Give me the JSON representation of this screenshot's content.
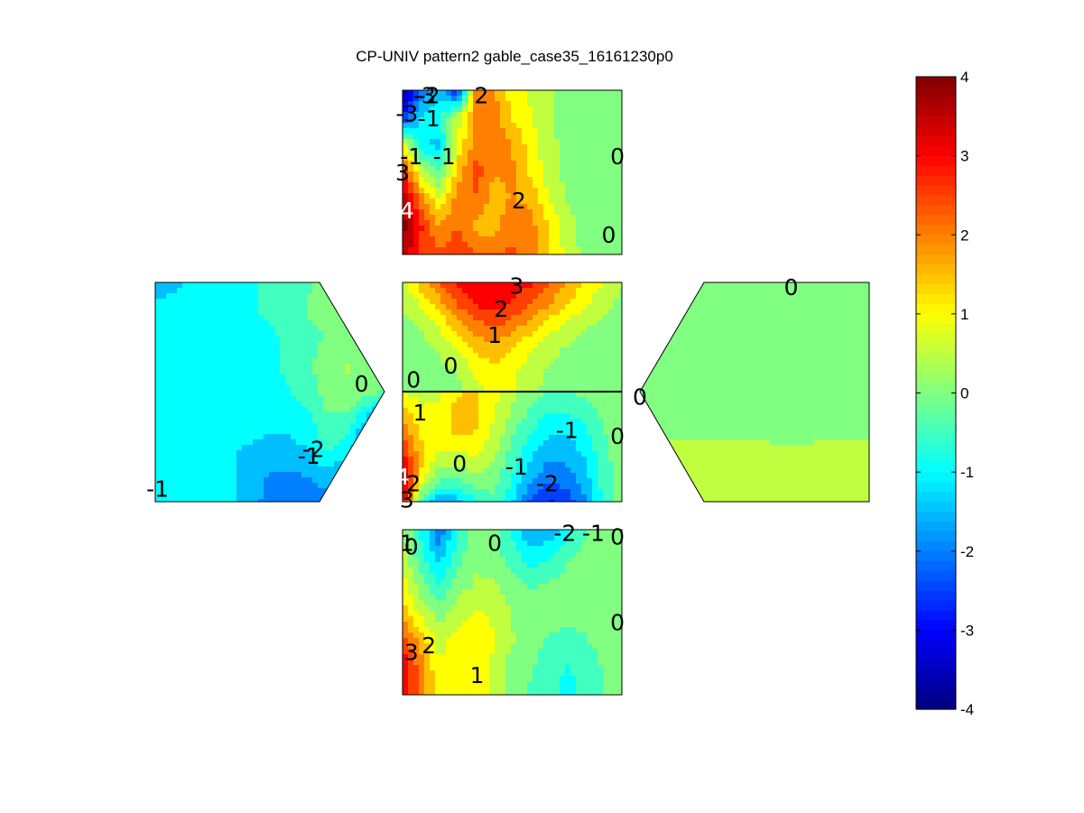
{
  "chart_data": {
    "type": "contour",
    "title": "CP-UNIV pattern2 gable_case35_16161230p0",
    "colormap": "jet",
    "colorbar": {
      "placement": "right",
      "range": [
        -4,
        4
      ],
      "levels": 64,
      "ticks": [
        "4",
        "3",
        "2",
        "1",
        "0",
        "-1",
        "-2",
        "-3",
        "-4"
      ]
    },
    "panels": [
      {
        "name": "top",
        "shape": "rectangle",
        "grid": [
          [
            -3.8,
            -2.3,
            -1.5,
            -3.0,
            2.0,
            1.8,
            1.0,
            0.6,
            0.3,
            0.1,
            0.0,
            0.0,
            0.0
          ],
          [
            -2.8,
            -1.2,
            -0.8,
            0.5,
            2.0,
            2.0,
            1.2,
            0.8,
            0.3,
            0.0,
            0.0,
            0.0,
            0.0
          ],
          [
            1.0,
            -1.2,
            -1.4,
            0.8,
            2.0,
            2.0,
            1.8,
            1.0,
            0.4,
            0.1,
            0.0,
            0.0,
            0.0
          ],
          [
            3.0,
            0.6,
            -0.4,
            1.5,
            2.5,
            1.8,
            1.8,
            1.2,
            0.5,
            0.1,
            0.0,
            0.0,
            0.0
          ],
          [
            3.8,
            2.0,
            0.8,
            2.0,
            2.2,
            1.5,
            1.8,
            1.6,
            0.8,
            0.2,
            0.0,
            0.0,
            0.0
          ],
          [
            4.0,
            2.8,
            1.8,
            2.3,
            1.6,
            1.5,
            2.2,
            2.0,
            1.2,
            0.5,
            0.0,
            0.0,
            0.0
          ],
          [
            3.6,
            2.6,
            2.4,
            2.5,
            2.3,
            2.3,
            2.3,
            2.0,
            1.3,
            0.6,
            0.1,
            0.0,
            0.0
          ]
        ],
        "contour_labels": [
          {
            "text": "-2",
            "x": 0.12,
            "y": 0.03
          },
          {
            "text": "-3",
            "x": 0.1,
            "y": 0.03
          },
          {
            "text": "2",
            "x": 0.36,
            "y": 0.03
          },
          {
            "text": "-3",
            "x": 0.02,
            "y": 0.14
          },
          {
            "text": "-1",
            "x": 0.12,
            "y": 0.17
          },
          {
            "text": "-1",
            "x": 0.04,
            "y": 0.4
          },
          {
            "text": "-1",
            "x": 0.19,
            "y": 0.4
          },
          {
            "text": "3",
            "x": 0.0,
            "y": 0.5
          },
          {
            "text": "0",
            "x": 0.98,
            "y": 0.4
          },
          {
            "text": "2",
            "x": 0.53,
            "y": 0.67
          },
          {
            "text": "4",
            "x": 0.02,
            "y": 0.73
          },
          {
            "text": "0",
            "x": 0.94,
            "y": 0.88
          }
        ]
      },
      {
        "name": "left",
        "shape": "gable",
        "grid": [
          [
            -1.7,
            -1.5,
            -1.1,
            -1.0,
            -0.9,
            -0.8,
            -0.6,
            -0.4,
            -0.3,
            -0.1,
            0.0,
            0.0,
            0.0
          ],
          [
            -0.9,
            -0.9,
            -0.9,
            -0.8,
            -0.8,
            -0.8,
            -0.6,
            -0.5,
            -0.2,
            -0.1,
            0.0,
            0.0,
            0.0
          ],
          [
            -0.8,
            -0.9,
            -0.9,
            -0.8,
            -0.9,
            -0.9,
            -0.9,
            -0.5,
            -0.4,
            -0.2,
            0.0,
            0.0,
            0.0
          ],
          [
            -0.8,
            -0.9,
            -0.9,
            -0.9,
            -0.9,
            -0.9,
            -0.9,
            -0.6,
            -0.4,
            0.1,
            0.3,
            0.0,
            0.0
          ],
          [
            -1.1,
            -1.1,
            -1.1,
            -1.0,
            -0.9,
            -0.9,
            -0.9,
            -0.8,
            -0.5,
            0.0,
            0.2,
            0.0,
            -0.2
          ],
          [
            -1.1,
            -1.1,
            -1.2,
            -1.2,
            -1.1,
            -1.0,
            -1.1,
            -1.0,
            -0.9,
            -0.3,
            -0.4,
            -1.3,
            -2.8
          ],
          [
            -1.1,
            -1.1,
            -1.1,
            -1.2,
            -1.2,
            -1.3,
            -1.4,
            -1.4,
            -1.2,
            -0.6,
            -1.0,
            -2.0,
            -3.0
          ],
          [
            -0.9,
            -0.9,
            -0.9,
            -1.0,
            -1.2,
            -1.5,
            -1.8,
            -1.8,
            -1.7,
            -1.4,
            -1.8,
            -2.5,
            -3.0
          ],
          [
            -0.9,
            -0.9,
            -0.9,
            -0.9,
            -1.2,
            -1.5,
            -2.0,
            -2.2,
            -2.2,
            -2.0,
            -2.3,
            -2.8,
            -3.0
          ]
        ],
        "contour_labels": [
          {
            "text": "0",
            "x": 0.9,
            "y": 0.46
          },
          {
            "text": "-1",
            "x": 0.67,
            "y": 0.79
          },
          {
            "text": "-2",
            "x": 0.69,
            "y": 0.76
          },
          {
            "text": "-1",
            "x": 0.01,
            "y": 0.94
          }
        ]
      },
      {
        "name": "center-upper",
        "shape": "rectangle",
        "grid": [
          [
            0.5,
            1.5,
            2.3,
            2.8,
            3.1,
            3.3,
            3.2,
            2.8,
            2.3,
            1.8,
            1.2,
            0.8,
            0.3
          ],
          [
            0.3,
            0.8,
            1.5,
            2.3,
            2.8,
            3.0,
            2.7,
            2.3,
            1.8,
            1.2,
            0.8,
            0.4,
            0.1
          ],
          [
            0.1,
            0.3,
            0.8,
            1.5,
            2.0,
            2.3,
            2.0,
            1.5,
            1.0,
            0.6,
            0.3,
            0.1,
            0.0
          ],
          [
            0.0,
            0.1,
            0.3,
            0.8,
            1.3,
            1.6,
            1.3,
            0.8,
            0.4,
            0.2,
            0.1,
            0.0,
            0.0
          ],
          [
            -0.1,
            -0.1,
            0.1,
            0.3,
            0.9,
            1.2,
            0.9,
            0.5,
            0.2,
            0.1,
            0.0,
            0.0,
            -0.1
          ],
          [
            -0.2,
            -0.2,
            -0.1,
            0.1,
            0.6,
            0.9,
            0.8,
            0.4,
            0.1,
            0.0,
            0.1,
            0.0,
            -0.1
          ]
        ],
        "contour_labels": [
          {
            "text": "3",
            "x": 0.52,
            "y": 0.03
          },
          {
            "text": "2",
            "x": 0.45,
            "y": 0.24
          },
          {
            "text": "1",
            "x": 0.42,
            "y": 0.48
          },
          {
            "text": "0",
            "x": 0.22,
            "y": 0.76
          },
          {
            "text": "0",
            "x": 0.05,
            "y": 0.89
          }
        ]
      },
      {
        "name": "center-lower",
        "shape": "rectangle",
        "grid": [
          [
            0.8,
            0.5,
            0.6,
            1.2,
            1.3,
            0.9,
            0.4,
            0.0,
            -0.3,
            -0.3,
            -0.1,
            0.0,
            0.0
          ],
          [
            1.6,
            0.9,
            1.0,
            1.5,
            1.4,
            0.8,
            0.2,
            -0.4,
            -0.8,
            -0.8,
            -0.5,
            -0.1,
            0.0
          ],
          [
            2.3,
            1.2,
            1.0,
            1.3,
            1.2,
            0.6,
            -0.2,
            -0.8,
            -1.2,
            -1.3,
            -0.9,
            -0.3,
            0.0
          ],
          [
            3.0,
            1.5,
            0.6,
            0.5,
            0.8,
            0.3,
            -0.5,
            -1.2,
            -1.7,
            -1.6,
            -1.2,
            -0.4,
            0.0
          ],
          [
            3.8,
            1.0,
            -0.2,
            -0.3,
            0.0,
            0.0,
            -0.8,
            -1.6,
            -2.2,
            -2.0,
            -1.5,
            -0.5,
            0.0
          ],
          [
            3.2,
            -0.5,
            -1.8,
            -1.5,
            -0.8,
            -0.4,
            -1.2,
            -2.3,
            -2.8,
            -2.5,
            -1.8,
            -0.6,
            0.0
          ]
        ],
        "contour_labels": [
          {
            "text": "1",
            "x": 0.08,
            "y": 0.19
          },
          {
            "text": "-1",
            "x": 0.75,
            "y": 0.35
          },
          {
            "text": "0",
            "x": 0.98,
            "y": 0.4
          },
          {
            "text": "0",
            "x": 0.26,
            "y": 0.65
          },
          {
            "text": "-1",
            "x": 0.52,
            "y": 0.68
          },
          {
            "text": "4",
            "x": 0.0,
            "y": 0.77
          },
          {
            "text": "2",
            "x": 0.05,
            "y": 0.83
          },
          {
            "text": "-2",
            "x": 0.66,
            "y": 0.83
          },
          {
            "text": "3",
            "x": 0.02,
            "y": 0.98
          }
        ]
      },
      {
        "name": "right",
        "shape": "gable",
        "grid": [
          [
            0.0,
            0.0,
            0.0,
            0.0,
            0.0,
            0.0,
            0.0,
            0.0,
            0.0,
            0.0,
            0.0,
            0.0,
            -0.1
          ],
          [
            0.0,
            0.0,
            0.0,
            0.0,
            0.0,
            0.0,
            0.0,
            0.0,
            0.0,
            0.0,
            0.0,
            0.0,
            0.0
          ],
          [
            0.0,
            0.0,
            0.0,
            0.0,
            0.0,
            0.0,
            0.0,
            0.0,
            0.0,
            0.0,
            0.0,
            0.0,
            0.0
          ],
          [
            0.0,
            0.0,
            0.0,
            0.0,
            0.0,
            0.0,
            0.0,
            0.0,
            0.0,
            0.0,
            0.0,
            0.0,
            0.0
          ],
          [
            0.0,
            0.0,
            0.0,
            0.0,
            0.0,
            0.0,
            0.0,
            0.0,
            0.0,
            0.0,
            0.0,
            0.0,
            0.0
          ],
          [
            0.0,
            0.1,
            0.1,
            0.1,
            0.1,
            0.1,
            0.1,
            0.0,
            0.0,
            0.0,
            0.1,
            0.1,
            0.1
          ],
          [
            0.2,
            0.3,
            0.3,
            0.3,
            0.3,
            0.3,
            0.3,
            0.3,
            0.3,
            0.3,
            0.3,
            0.3,
            0.3
          ],
          [
            0.3,
            0.3,
            0.3,
            0.3,
            0.3,
            0.3,
            0.3,
            0.3,
            0.3,
            0.3,
            0.3,
            0.3,
            0.3
          ],
          [
            0.3,
            0.3,
            0.3,
            0.3,
            0.3,
            0.3,
            0.3,
            0.3,
            0.3,
            0.3,
            0.3,
            0.3,
            0.3
          ]
        ],
        "contour_labels": [
          {
            "text": "0",
            "x": 0.66,
            "y": 0.02
          },
          {
            "text": "0",
            "x": 0.0,
            "y": 0.52
          }
        ]
      },
      {
        "name": "bottom",
        "shape": "rectangle",
        "grid": [
          [
            0.2,
            -0.8,
            -2.2,
            -0.8,
            0.2,
            0.0,
            -0.8,
            -1.8,
            -1.6,
            -1.0,
            -0.3,
            0.0,
            0.0
          ],
          [
            0.5,
            -0.5,
            -1.5,
            -0.5,
            0.2,
            0.0,
            -0.5,
            -1.0,
            -0.8,
            -0.3,
            0.0,
            0.0,
            0.0
          ],
          [
            1.0,
            0.0,
            -0.8,
            0.0,
            0.3,
            0.3,
            0.0,
            -0.3,
            -0.2,
            0.0,
            0.0,
            0.0,
            0.0
          ],
          [
            1.5,
            0.6,
            0.0,
            0.5,
            0.8,
            0.6,
            0.2,
            0.0,
            0.0,
            0.0,
            0.0,
            0.0,
            0.0
          ],
          [
            2.5,
            1.5,
            0.5,
            1.0,
            1.2,
            0.8,
            0.3,
            0.0,
            -0.3,
            -0.5,
            -0.3,
            0.0,
            0.0
          ],
          [
            3.2,
            2.0,
            0.8,
            1.0,
            1.2,
            0.6,
            0.0,
            -0.2,
            -0.5,
            -0.8,
            -0.6,
            -0.2,
            0.0
          ],
          [
            3.0,
            2.0,
            1.0,
            1.0,
            1.2,
            0.5,
            0.0,
            -0.3,
            -0.6,
            -0.9,
            -0.6,
            -0.2,
            0.0
          ]
        ],
        "contour_labels": [
          {
            "text": "-2",
            "x": 0.74,
            "y": 0.02
          },
          {
            "text": "-1",
            "x": 0.87,
            "y": 0.02
          },
          {
            "text": "1",
            "x": 0.02,
            "y": 0.08
          },
          {
            "text": "0",
            "x": 0.04,
            "y": 0.1
          },
          {
            "text": "0",
            "x": 0.42,
            "y": 0.08
          },
          {
            "text": "0",
            "x": 0.98,
            "y": 0.04
          },
          {
            "text": "0",
            "x": 0.98,
            "y": 0.56
          },
          {
            "text": "3",
            "x": 0.04,
            "y": 0.74
          },
          {
            "text": "2",
            "x": 0.12,
            "y": 0.7
          },
          {
            "text": "1",
            "x": 0.34,
            "y": 0.88
          }
        ]
      }
    ]
  }
}
